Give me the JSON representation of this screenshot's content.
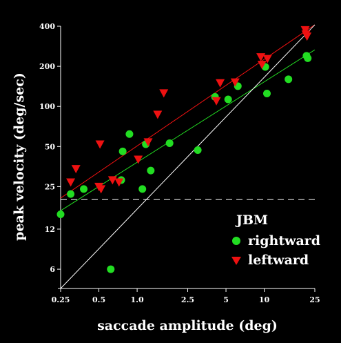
{
  "chart_data": {
    "type": "scatter",
    "title": "",
    "xlabel": "saccade amplitude (deg)",
    "ylabel": "peak velocity (deg/sec)",
    "xscale": "log",
    "yscale": "log",
    "xlim": [
      0.25,
      25
    ],
    "ylim": [
      4.3,
      400
    ],
    "x_ticks": [
      0.25,
      0.5,
      1.0,
      2.5,
      5,
      10,
      25
    ],
    "x_tick_labels": [
      "0.25",
      "0.5",
      "1.0",
      "2.5",
      "5",
      "10",
      "25"
    ],
    "y_ticks": [
      6,
      12,
      25,
      50,
      100,
      200,
      400
    ],
    "y_tick_labels": [
      "6",
      "12",
      "25",
      "50",
      "100",
      "200",
      "400"
    ],
    "grid": false,
    "legend": {
      "title": "JBM",
      "position": "right-middle"
    },
    "colors": {
      "background": "#000000",
      "axes": "#ffffff",
      "rightward": "#22dd22",
      "leftward": "#ee1111"
    },
    "series": [
      {
        "name": "rightward",
        "marker": "circle",
        "color": "#22dd22",
        "points": [
          [
            0.25,
            15.5
          ],
          [
            0.3,
            22
          ],
          [
            0.38,
            24
          ],
          [
            0.62,
            6
          ],
          [
            0.75,
            28
          ],
          [
            0.77,
            46
          ],
          [
            0.87,
            62
          ],
          [
            1.1,
            24
          ],
          [
            1.17,
            52
          ],
          [
            1.28,
            33
          ],
          [
            1.8,
            53
          ],
          [
            3.0,
            47
          ],
          [
            4.1,
            118
          ],
          [
            5.2,
            113
          ],
          [
            6.2,
            142
          ],
          [
            10.2,
            198
          ],
          [
            10.5,
            125
          ],
          [
            15.5,
            160
          ],
          [
            21.5,
            240
          ],
          [
            22.0,
            230
          ]
        ]
      },
      {
        "name": "leftward",
        "marker": "triangle-down",
        "color": "#ee1111",
        "points": [
          [
            0.3,
            27
          ],
          [
            0.33,
            34
          ],
          [
            0.5,
            25
          ],
          [
            0.51,
            52
          ],
          [
            0.52,
            24
          ],
          [
            0.64,
            28
          ],
          [
            0.72,
            27
          ],
          [
            1.02,
            40
          ],
          [
            1.22,
            54
          ],
          [
            1.45,
            87
          ],
          [
            1.62,
            126
          ],
          [
            4.2,
            110
          ],
          [
            4.5,
            150
          ],
          [
            5.9,
            152
          ],
          [
            9.4,
            235
          ],
          [
            9.6,
            206
          ],
          [
            10.6,
            228
          ],
          [
            21.0,
            375
          ],
          [
            21.3,
            348
          ],
          [
            21.7,
            336
          ]
        ]
      }
    ],
    "fit_lines": [
      {
        "series": "rightward",
        "color": "#22dd22",
        "from": [
          0.25,
          16.5
        ],
        "to": [
          25,
          266
        ]
      },
      {
        "series": "leftward",
        "color": "#ee1111",
        "from": [
          0.25,
          20.5
        ],
        "to": [
          25,
          410
        ]
      },
      {
        "series": "unity",
        "color": "#ffffff",
        "from": [
          0.25,
          4.3
        ],
        "to": [
          25,
          410
        ]
      }
    ],
    "reference_line": {
      "y": 20,
      "style": "dashed",
      "color": "#ffffff"
    }
  }
}
